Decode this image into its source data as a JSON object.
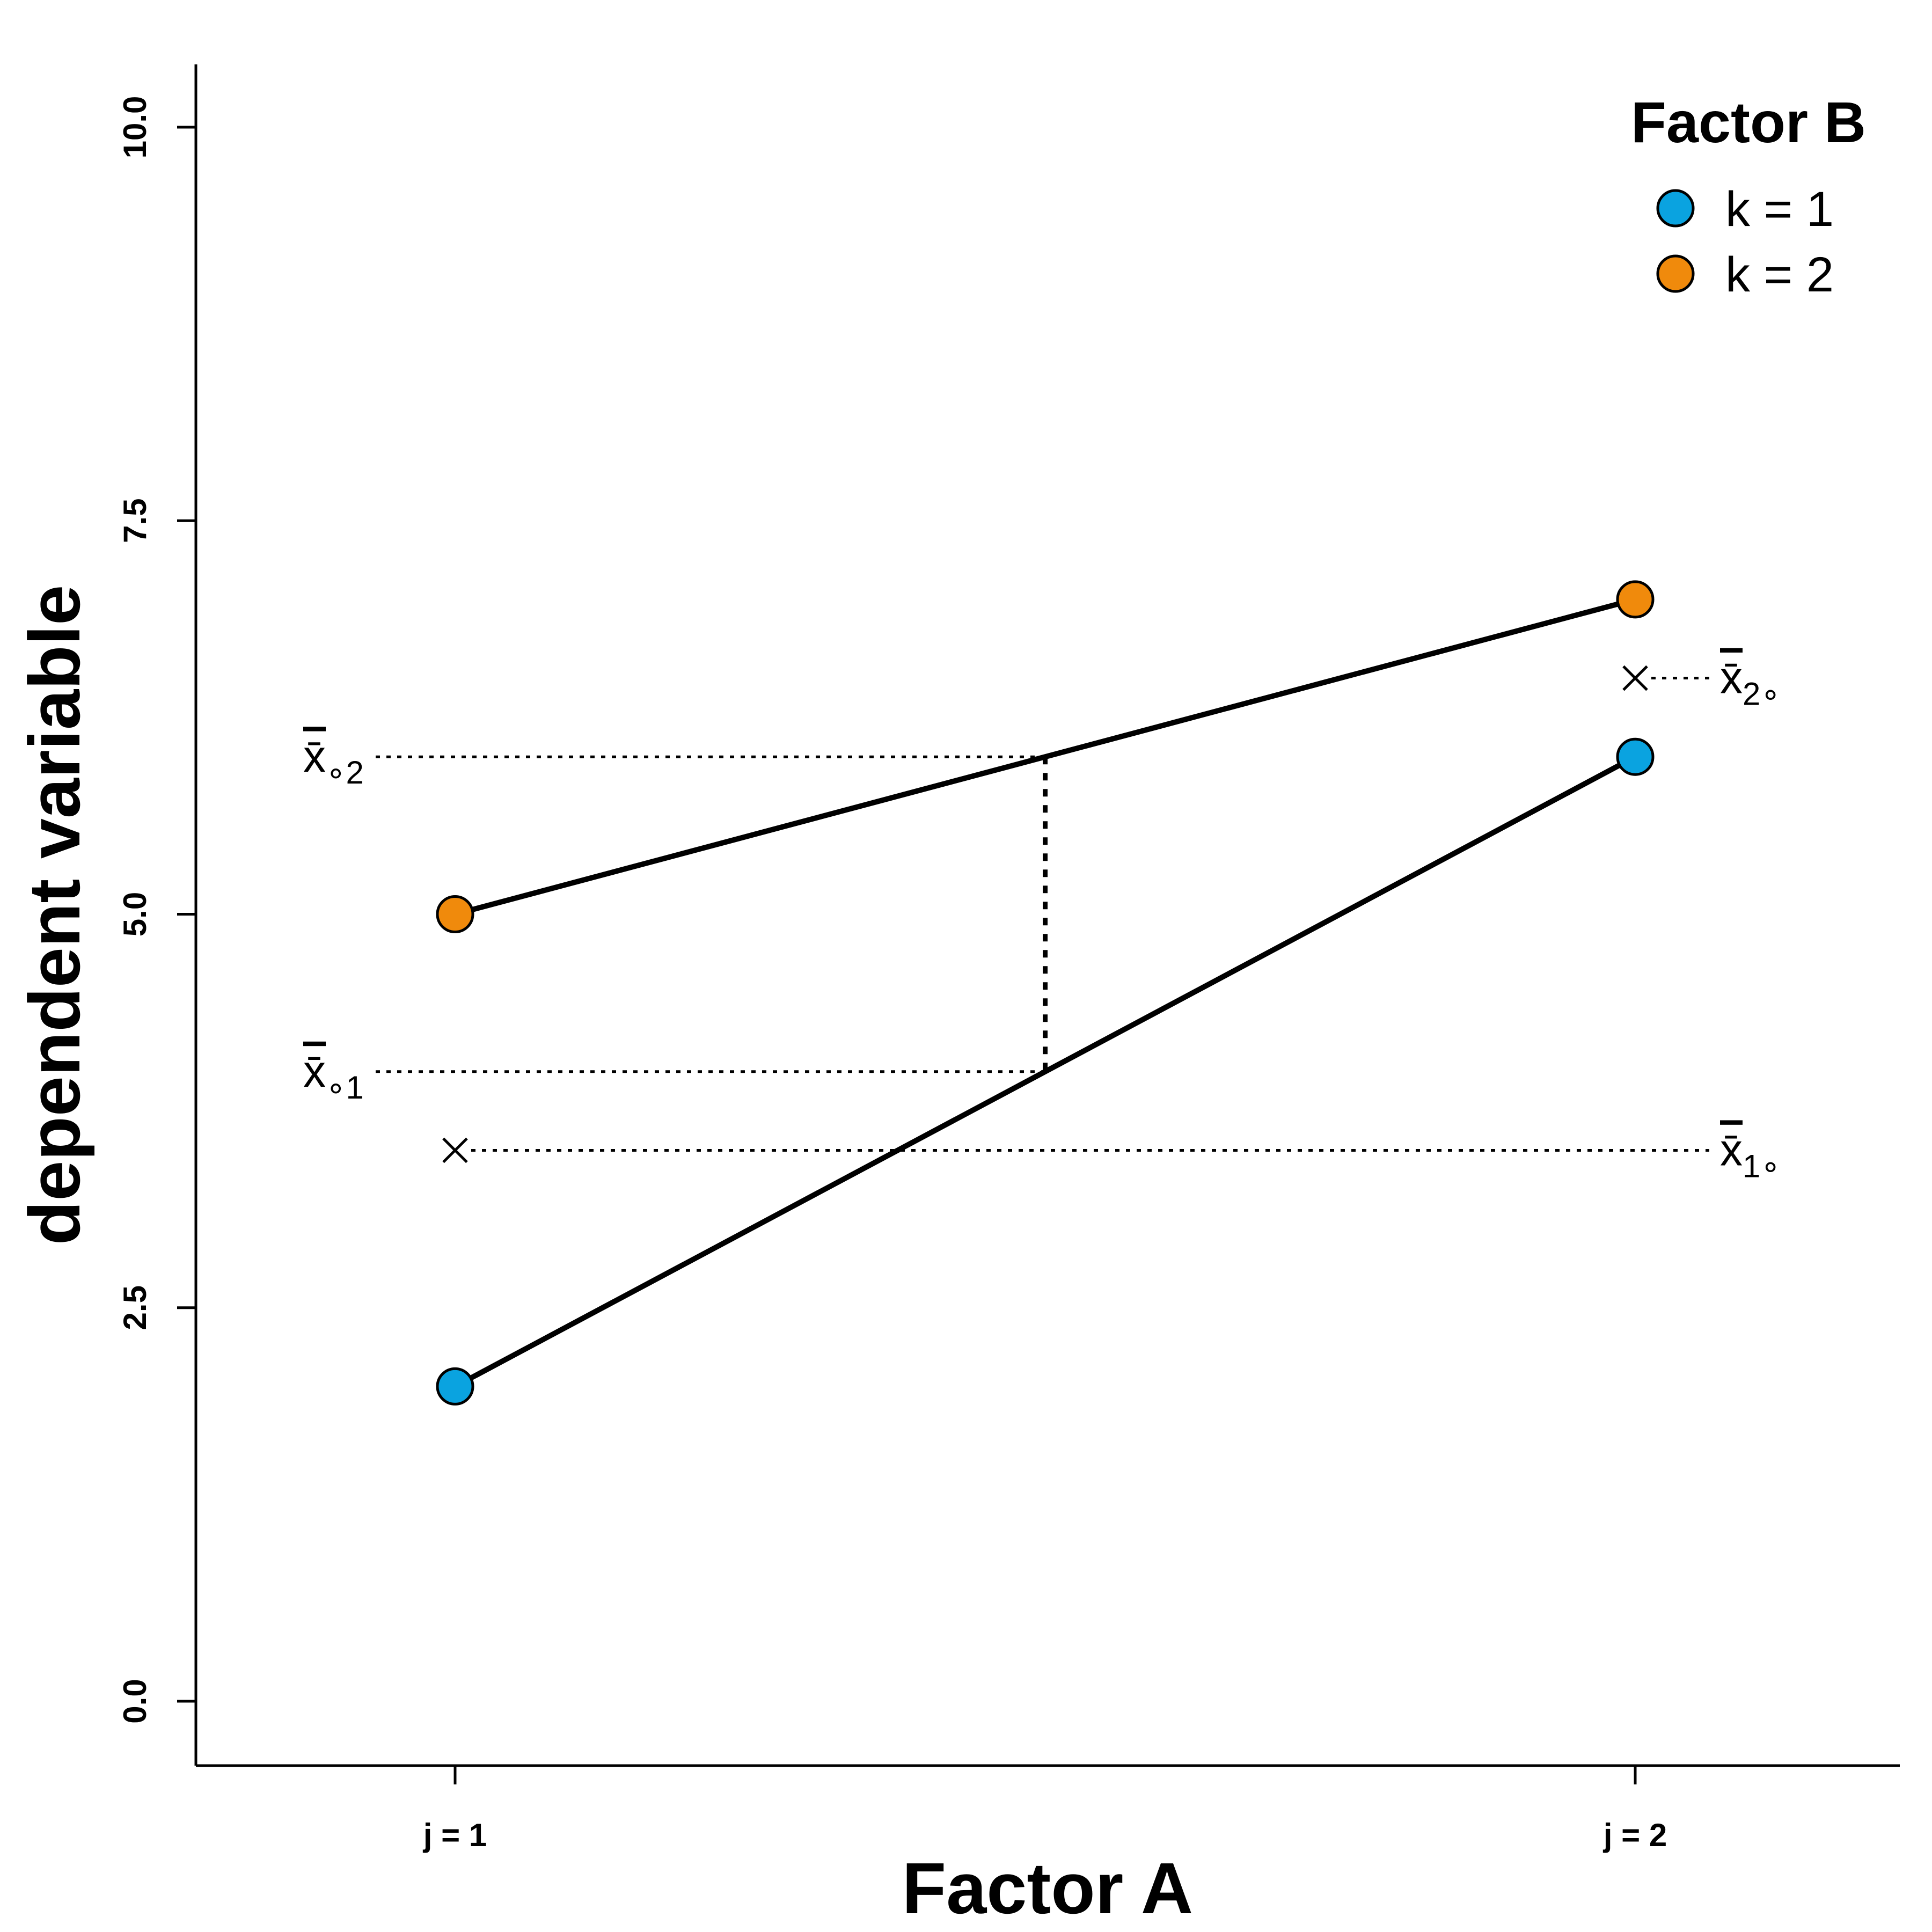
{
  "chart_data": {
    "type": "line",
    "xlabel": "Factor A",
    "ylabel": "dependent variable",
    "categories": [
      "j = 1",
      "j = 2"
    ],
    "yticks": [
      "0.0",
      "2.5",
      "5.0",
      "7.5",
      "10.0"
    ],
    "ylim": [
      -0.4,
      10.4
    ],
    "legend": {
      "title": "Factor B",
      "position": "top-right"
    },
    "series": [
      {
        "name": "k = 1",
        "color": "#0AA3E0",
        "values": [
          2,
          6
        ]
      },
      {
        "name": "k = 2",
        "color": "#F08A0C",
        "values": [
          5,
          7
        ]
      }
    ],
    "marginal_means": {
      "factor_a": [
        {
          "label": "x̄",
          "sub": "1∘",
          "value": 3.5
        },
        {
          "label": "x̄",
          "sub": "2∘",
          "value": 6.5
        }
      ],
      "factor_b": [
        {
          "label": "x̄",
          "sub": "∘1",
          "value": 4
        },
        {
          "label": "x̄",
          "sub": "∘2",
          "value": 6
        }
      ]
    }
  }
}
